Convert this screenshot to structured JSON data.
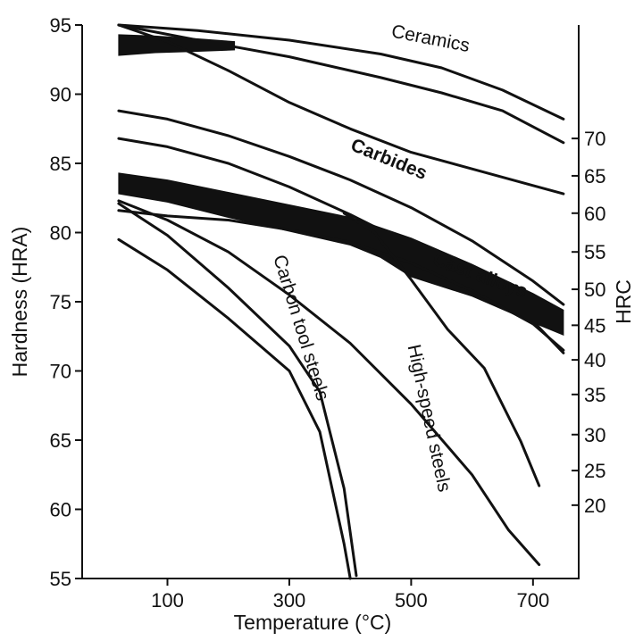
{
  "chart_data": {
    "type": "line",
    "title": "",
    "xlabel": "Temperature (°C)",
    "ylabel": "Hardness (HRA)",
    "y2label": "HRC",
    "xlim": [
      -40,
      775
    ],
    "ylim": [
      55,
      95
    ],
    "x_ticks": [
      100,
      300,
      500,
      700
    ],
    "y_ticks": [
      55,
      60,
      65,
      70,
      75,
      80,
      85,
      90,
      95
    ],
    "y2_ticks": [
      {
        "label": "20",
        "hra": 60.3
      },
      {
        "label": "25",
        "hra": 62.8
      },
      {
        "label": "30",
        "hra": 65.4
      },
      {
        "label": "35",
        "hra": 68.3
      },
      {
        "label": "40",
        "hra": 70.8
      },
      {
        "label": "45",
        "hra": 73.3
      },
      {
        "label": "50",
        "hra": 75.9
      },
      {
        "label": "55",
        "hra": 78.6
      },
      {
        "label": "60",
        "hra": 81.4
      },
      {
        "label": "65",
        "hra": 84.1
      },
      {
        "label": "70",
        "hra": 86.8
      }
    ],
    "grid": false,
    "series": [
      {
        "name": "Ceramics",
        "label_x": 530,
        "label_y": 93.6,
        "label_rot": 11,
        "lines": [
          [
            [
              20,
              95.0
            ],
            [
              150,
              94.6
            ],
            [
              300,
              93.9
            ],
            [
              450,
              92.9
            ],
            [
              550,
              91.9
            ],
            [
              650,
              90.3
            ],
            [
              750,
              88.2
            ]
          ],
          [
            [
              20,
              95.0
            ],
            [
              150,
              93.9
            ],
            [
              300,
              92.7
            ],
            [
              450,
              91.2
            ],
            [
              550,
              90.1
            ],
            [
              650,
              88.8
            ],
            [
              750,
              86.5
            ]
          ]
        ]
      },
      {
        "name": "Carbides",
        "label_x": 460,
        "label_y": 84.9,
        "label_rot": 22,
        "lines": [
          [
            [
              20,
              95.0
            ],
            [
              100,
              93.8
            ],
            [
              200,
              91.7
            ],
            [
              300,
              89.4
            ],
            [
              400,
              87.5
            ],
            [
              500,
              85.8
            ],
            [
              600,
              84.6
            ],
            [
              700,
              83.4
            ],
            [
              750,
              82.8
            ]
          ],
          [
            [
              20,
              88.8
            ],
            [
              100,
              88.2
            ],
            [
              200,
              87.0
            ],
            [
              300,
              85.5
            ],
            [
              400,
              83.8
            ],
            [
              500,
              81.8
            ],
            [
              600,
              79.4
            ],
            [
              700,
              76.5
            ],
            [
              750,
              74.8
            ]
          ],
          [
            [
              20,
              86.8
            ],
            [
              100,
              86.2
            ],
            [
              200,
              85.0
            ],
            [
              300,
              83.3
            ],
            [
              400,
              81.3
            ],
            [
              500,
              79.1
            ],
            [
              600,
              76.6
            ],
            [
              700,
              73.6
            ],
            [
              750,
              71.3
            ]
          ]
        ],
        "bands": [
          {
            "upper": [
              [
                20,
                94.3
              ],
              [
                80,
                94.2
              ],
              [
                150,
                94.0
              ],
              [
                210,
                93.8
              ]
            ],
            "lower": [
              [
                20,
                92.8
              ],
              [
                80,
                93.0
              ],
              [
                150,
                93.1
              ],
              [
                210,
                93.2
              ]
            ]
          }
        ]
      },
      {
        "name": "Cast alloys",
        "label_x": 610,
        "label_y": 76.5,
        "label_rot": 20,
        "lines": [
          [
            [
              20,
              81.6
            ],
            [
              100,
              81.2
            ],
            [
              200,
              80.9
            ],
            [
              300,
              80.2
            ],
            [
              400,
              79.3
            ],
            [
              500,
              77.8
            ],
            [
              600,
              75.8
            ],
            [
              700,
              73.4
            ],
            [
              750,
              71.5
            ]
          ]
        ],
        "bands": [
          {
            "upper": [
              [
                20,
                84.3
              ],
              [
                100,
                83.8
              ],
              [
                200,
                82.9
              ],
              [
                300,
                82.0
              ],
              [
                400,
                81.1
              ],
              [
                500,
                79.6
              ],
              [
                600,
                77.7
              ],
              [
                700,
                75.6
              ],
              [
                750,
                74.4
              ]
            ],
            "lower": [
              [
                20,
                82.8
              ],
              [
                100,
                82.2
              ],
              [
                200,
                81.1
              ],
              [
                300,
                80.1
              ],
              [
                400,
                79.1
              ],
              [
                450,
                78.2
              ],
              [
                500,
                76.8
              ],
              [
                600,
                75.4
              ],
              [
                700,
                73.5
              ],
              [
                750,
                72.6
              ]
            ]
          }
        ]
      },
      {
        "name": "High-speed steels",
        "label_x": 520,
        "label_y": 66.5,
        "label_rot": 78,
        "lines": [
          [
            [
              20,
              82.3
            ],
            [
              100,
              80.9
            ],
            [
              200,
              78.6
            ],
            [
              300,
              75.5
            ],
            [
              400,
              72.0
            ],
            [
              500,
              67.6
            ],
            [
              600,
              62.5
            ],
            [
              660,
              58.5
            ],
            [
              710,
              56.0
            ]
          ],
          [
            [
              390,
              81.4
            ],
            [
              440,
              80.0
            ],
            [
              500,
              76.6
            ],
            [
              560,
              73.0
            ],
            [
              620,
              70.2
            ],
            [
              680,
              64.9
            ],
            [
              710,
              61.7
            ]
          ]
        ]
      },
      {
        "name": "Carbon tool steels",
        "label_x": 310,
        "label_y": 73.0,
        "label_rot": 73,
        "lines": [
          [
            [
              20,
              79.5
            ],
            [
              100,
              77.3
            ],
            [
              200,
              73.8
            ],
            [
              300,
              70.0
            ],
            [
              350,
              65.6
            ],
            [
              390,
              57.5
            ],
            [
              400,
              55.0
            ]
          ],
          [
            [
              20,
              82.1
            ],
            [
              100,
              79.8
            ],
            [
              200,
              76.0
            ],
            [
              300,
              71.8
            ],
            [
              350,
              68.5
            ],
            [
              390,
              61.5
            ],
            [
              410,
              55.2
            ]
          ]
        ]
      }
    ]
  }
}
